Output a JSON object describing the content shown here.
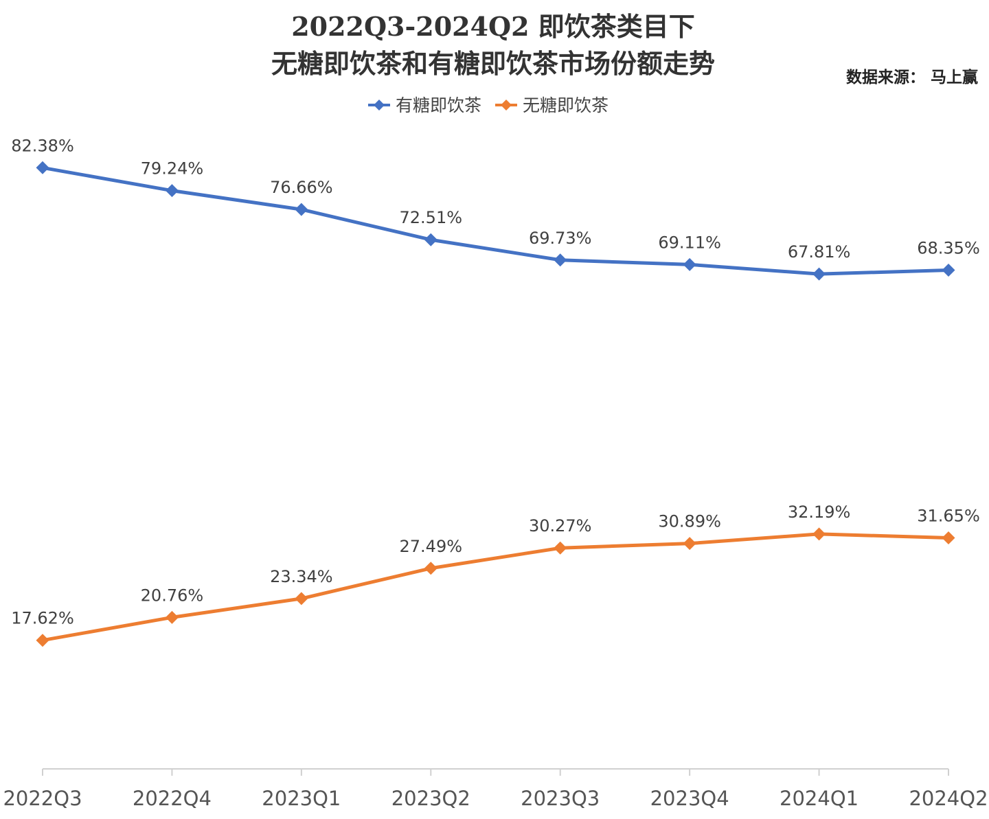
{
  "chart_data": {
    "type": "line",
    "title": "2022Q3-2024Q2 即饮茶类目下",
    "subtitle": "无糖即饮茶和有糖即饮茶市场份额走势",
    "source": "数据来源： 马上赢",
    "categories": [
      "2022Q3",
      "2022Q4",
      "2023Q1",
      "2023Q2",
      "2023Q3",
      "2023Q4",
      "2024Q1",
      "2024Q2"
    ],
    "series": [
      {
        "name": "有糖即饮茶",
        "color": "#4472C4",
        "values": [
          82.38,
          79.24,
          76.66,
          72.51,
          69.73,
          69.11,
          67.81,
          68.35
        ],
        "labels": [
          "82.38%",
          "79.24%",
          "76.66%",
          "72.51%",
          "69.73%",
          "69.11%",
          "67.81%",
          "68.35%"
        ]
      },
      {
        "name": "无糖即饮茶",
        "color": "#ED7D31",
        "values": [
          17.62,
          20.76,
          23.34,
          27.49,
          30.27,
          30.89,
          32.19,
          31.65
        ],
        "labels": [
          "17.62%",
          "20.76%",
          "23.34%",
          "27.49%",
          "30.27%",
          "30.89%",
          "32.19%",
          "31.65%"
        ]
      }
    ],
    "ylim": [
      0,
      100
    ],
    "grid": false,
    "legend_position": "top-center",
    "marker": "diamond"
  }
}
